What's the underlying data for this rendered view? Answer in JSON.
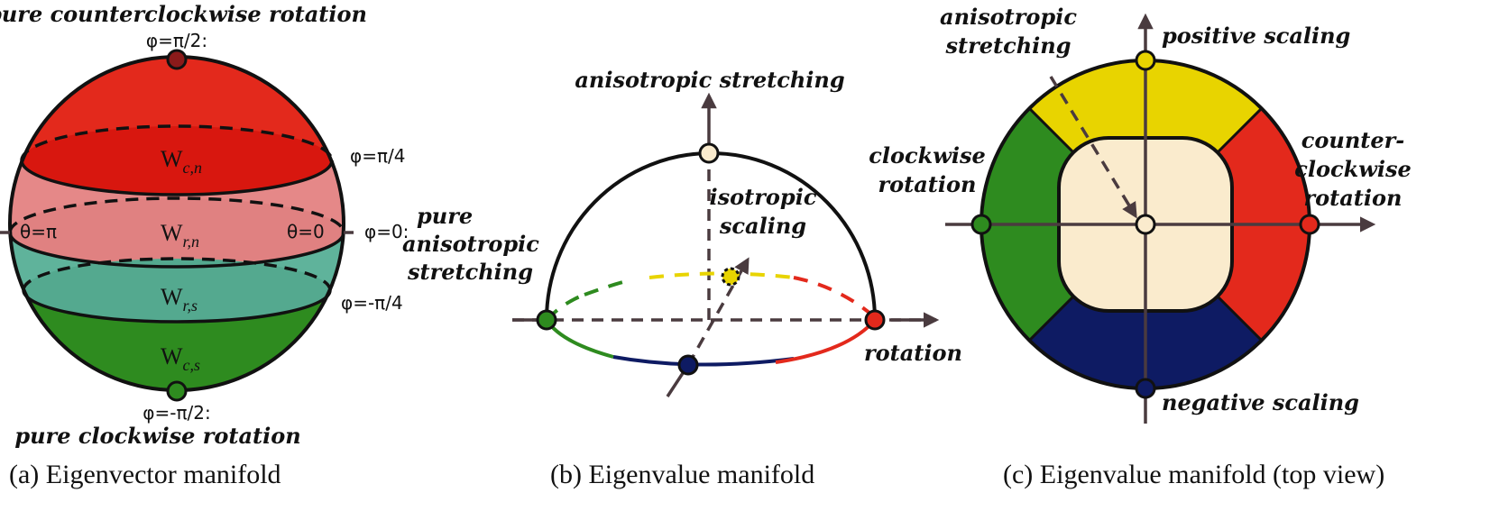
{
  "colors": {
    "red": "#e3291c",
    "red_dark": "#d8170f",
    "pink": "#e58888",
    "teal": "#5fb39b",
    "green": "#2e8b1f",
    "yellow": "#e8d400",
    "navy": "#0e1b63",
    "cream": "#faebcd",
    "axis": "#4a3b3f",
    "dark_red_point": "#8b1a1a"
  },
  "panel_a": {
    "top_title": "pure counterclockwise rotation",
    "phi_top": "φ=π/2:",
    "phi_q1": "φ=π/4",
    "phi_zero": "φ=0:",
    "zero_label": [
      "pure",
      "anisotropic",
      "stretching"
    ],
    "theta_left": "θ=π",
    "theta_right": "θ=0",
    "phi_q3": "φ=-π/4",
    "phi_bottom": "φ=-π/2:",
    "bottom_title": "pure clockwise rotation",
    "regions": [
      {
        "main": "W",
        "sub": "c,n"
      },
      {
        "main": "W",
        "sub": "r,n"
      },
      {
        "main": "W",
        "sub": "r,s"
      },
      {
        "main": "W",
        "sub": "c,s"
      }
    ],
    "caption": "(a) Eigenvector manifold"
  },
  "panel_b": {
    "top_label": "anisotropic stretching",
    "iso_label": [
      "isotropic",
      "scaling"
    ],
    "right_label": "rotation",
    "caption": "(b) Eigenvalue manifold"
  },
  "panel_c": {
    "aniso_label": [
      "anisotropic",
      "stretching"
    ],
    "top_label": "positive scaling",
    "left_label": [
      "clockwise",
      "rotation"
    ],
    "right_label": [
      "counter-",
      "clockwise",
      "rotation"
    ],
    "bottom_label": "negative scaling",
    "caption": "(c) Eigenvalue manifold (top view)"
  }
}
